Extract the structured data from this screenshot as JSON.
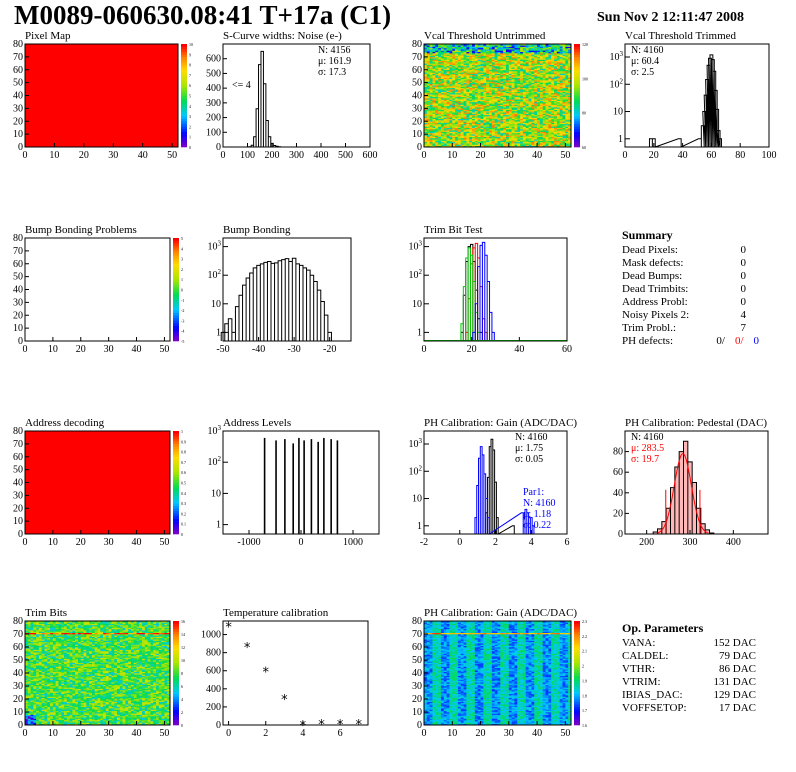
{
  "header": {
    "title": "M0089-060630.08:41 T+17a (C1)",
    "date": "Sun Nov  2 12:11:47 2008"
  },
  "colors": {
    "red": "#ff0000",
    "black": "#000000",
    "green": "#00cc00",
    "blue": "#0000ff",
    "pink_fill": "#ff9999"
  },
  "chart_data": [
    {
      "id": "pixel_map",
      "type": "heatmap",
      "title": "Pixel Map",
      "xlim": [
        0,
        52
      ],
      "ylim": [
        0,
        80
      ],
      "xticks": [
        "0",
        "10",
        "20",
        "30",
        "40",
        "50"
      ],
      "yticks": [
        "0",
        "10",
        "20",
        "30",
        "40",
        "50",
        "60",
        "70",
        "80"
      ],
      "zticks": [
        "0",
        "1",
        "2",
        "3",
        "4",
        "5",
        "6",
        "7",
        "8",
        "9",
        "10"
      ],
      "fill": "uniform-maximum"
    },
    {
      "id": "scurve_noise",
      "type": "histogram",
      "title": "S-Curve widths: Noise (e-)",
      "xlim": [
        0,
        600
      ],
      "ylim": [
        0,
        700
      ],
      "xticks": [
        "0",
        "100",
        "200",
        "300",
        "400",
        "500",
        "600"
      ],
      "yticks": [
        "0",
        "100",
        "200",
        "300",
        "400",
        "500",
        "600"
      ],
      "annotation": "<= 4",
      "stats": [
        "N: 4156",
        "μ: 161.9",
        "σ: 17.3"
      ],
      "x": [
        110,
        120,
        130,
        140,
        150,
        160,
        170,
        180,
        190,
        200,
        210,
        220,
        230,
        240
      ],
      "y": [
        2,
        12,
        70,
        260,
        560,
        650,
        430,
        180,
        70,
        25,
        10,
        5,
        2,
        0
      ]
    },
    {
      "id": "vcal_untrimmed",
      "type": "heatmap",
      "title": "Vcal Threshold Untrimmed",
      "xlim": [
        0,
        52
      ],
      "ylim": [
        0,
        80
      ],
      "xticks": [
        "0",
        "10",
        "20",
        "30",
        "40",
        "50"
      ],
      "yticks": [
        "0",
        "10",
        "20",
        "30",
        "40",
        "50",
        "60",
        "70",
        "80"
      ],
      "zticks": [
        "60",
        "80",
        "100",
        "120"
      ]
    },
    {
      "id": "vcal_trimmed",
      "type": "histogram",
      "title": "Vcal Threshold Trimmed",
      "yscale": "log",
      "xlim": [
        0,
        100
      ],
      "ylim": [
        0.5,
        3000
      ],
      "xticks": [
        "0",
        "20",
        "40",
        "60",
        "80",
        "100"
      ],
      "stats": [
        "N: 4160",
        "μ: 60.4",
        "σ:  2.5"
      ],
      "x": [
        18,
        20,
        38,
        52,
        54,
        55,
        56,
        57,
        58,
        59,
        60,
        61,
        62,
        63,
        64,
        65,
        66
      ],
      "y": [
        1,
        1,
        1,
        1,
        3,
        10,
        40,
        150,
        500,
        900,
        1200,
        800,
        300,
        60,
        12,
        2,
        1
      ]
    },
    {
      "id": "bump_problems",
      "type": "heatmap",
      "title": "Bump Bonding Problems",
      "xlim": [
        0,
        52
      ],
      "ylim": [
        0,
        80
      ],
      "xticks": [
        "0",
        "10",
        "20",
        "30",
        "40",
        "50"
      ],
      "yticks": [
        "0",
        "10",
        "20",
        "30",
        "40",
        "50",
        "60",
        "70",
        "80"
      ],
      "zticks": [
        "-5",
        "-4",
        "-3",
        "-2",
        "-1",
        "0",
        "1",
        "2",
        "3",
        "4",
        "5"
      ],
      "fill": "empty"
    },
    {
      "id": "bump_bonding",
      "type": "histogram",
      "title": "Bump Bonding",
      "yscale": "log",
      "xlim": [
        -50,
        -14
      ],
      "ylim": [
        0.5,
        2000
      ],
      "xticks": [
        "-50",
        "-40",
        "-30",
        "-20"
      ],
      "x": [
        -50,
        -49,
        -48,
        -47,
        -46,
        -45,
        -44,
        -43,
        -42,
        -41,
        -40,
        -39,
        -38,
        -37,
        -36,
        -35,
        -34,
        -33,
        -32,
        -31,
        -30,
        -29,
        -28,
        -27,
        -26,
        -25,
        -24,
        -23,
        -22,
        -21,
        -20,
        -19
      ],
      "y": [
        1,
        2,
        3,
        1,
        8,
        20,
        45,
        80,
        120,
        180,
        220,
        250,
        280,
        300,
        260,
        270,
        320,
        350,
        380,
        300,
        390,
        250,
        220,
        180,
        150,
        100,
        60,
        30,
        12,
        4,
        1,
        0
      ]
    },
    {
      "id": "trim_bit_test",
      "type": "histogram",
      "title": "Trim Bit Test",
      "yscale": "log",
      "xlim": [
        0,
        60
      ],
      "ylim": [
        0.5,
        2000
      ],
      "xticks": [
        "0",
        "20",
        "40",
        "60"
      ],
      "series": [
        {
          "color": "black",
          "x": [
            16,
            17,
            18,
            19,
            20,
            21,
            22,
            23,
            24
          ],
          "y": [
            1,
            20,
            300,
            1000,
            1200,
            300,
            30,
            3,
            1
          ]
        },
        {
          "color": "red",
          "x": [
            18,
            19,
            20,
            21,
            22,
            23,
            24,
            25,
            26
          ],
          "y": [
            1,
            15,
            250,
            900,
            1300,
            400,
            40,
            3,
            1
          ]
        },
        {
          "color": "green",
          "x": [
            16,
            17,
            18,
            19,
            20,
            21,
            22,
            23
          ],
          "y": [
            2,
            40,
            400,
            900,
            500,
            60,
            5,
            1
          ]
        },
        {
          "color": "blue",
          "x": [
            21,
            22,
            23,
            24,
            25,
            26,
            27,
            28,
            29
          ],
          "y": [
            1,
            10,
            200,
            1100,
            1400,
            500,
            60,
            5,
            1
          ]
        }
      ]
    },
    {
      "id": "address_decoding",
      "type": "heatmap",
      "title": "Address decoding",
      "xlim": [
        0,
        52
      ],
      "ylim": [
        0,
        80
      ],
      "xticks": [
        "0",
        "10",
        "20",
        "30",
        "40",
        "50"
      ],
      "yticks": [
        "0",
        "10",
        "20",
        "30",
        "40",
        "50",
        "60",
        "70",
        "80"
      ],
      "zticks": [
        "0",
        "0.1",
        "0.2",
        "0.3",
        "0.4",
        "0.5",
        "0.6",
        "0.7",
        "0.8",
        "0.9",
        "1"
      ],
      "fill": "uniform-maximum"
    },
    {
      "id": "address_levels",
      "type": "histogram",
      "title": "Address Levels",
      "yscale": "log",
      "xlim": [
        -1500,
        1500
      ],
      "ylim": [
        0.5,
        1000
      ],
      "xticks": [
        "-1000",
        "0",
        "1000"
      ],
      "x": [
        -700,
        -480,
        -310,
        -150,
        -40,
        60,
        200,
        330,
        440,
        580,
        700
      ],
      "y": [
        600,
        500,
        550,
        400,
        600,
        500,
        550,
        450,
        600,
        550,
        500
      ]
    },
    {
      "id": "ph_gain",
      "type": "histogram",
      "title": "PH Calibration: Gain (ADC/DAC)",
      "yscale": "log",
      "xlim": [
        -2,
        6
      ],
      "ylim": [
        0.5,
        3000
      ],
      "xticks": [
        "-2",
        "0",
        "2",
        "4",
        "6"
      ],
      "stats": [
        "N: 4160",
        "μ: 1.75",
        "σ: 0.05"
      ],
      "stats2": [
        "Par1:",
        "N: 4160",
        "μ: 1.18",
        "σ: 0.22"
      ],
      "series": [
        {
          "color": "black",
          "x": [
            1.5,
            1.6,
            1.7,
            1.8,
            1.9,
            2.0,
            2.1,
            3.0
          ],
          "y": [
            3,
            60,
            800,
            1500,
            600,
            40,
            2,
            1
          ]
        },
        {
          "color": "blue",
          "x": [
            0.9,
            1.0,
            1.1,
            1.2,
            1.3,
            1.4,
            1.5,
            1.6,
            3.5,
            3.6,
            3.7,
            3.8,
            3.9,
            4.0,
            4.1
          ],
          "y": [
            2,
            30,
            300,
            800,
            400,
            80,
            10,
            2,
            3,
            2,
            4,
            3,
            2,
            2,
            1
          ]
        }
      ]
    },
    {
      "id": "ph_pedestal",
      "type": "histogram",
      "title": "PH Calibration: Pedestal (DAC)",
      "xlim": [
        150,
        480
      ],
      "ylim": [
        0,
        100
      ],
      "xticks": [
        "200",
        "300",
        "400"
      ],
      "yticks": [
        "0",
        "20",
        "40",
        "60",
        "80"
      ],
      "stats": [
        "N: 4160",
        "μ: 283.5",
        "σ: 19.7"
      ],
      "x": [
        220,
        230,
        240,
        250,
        260,
        270,
        280,
        290,
        300,
        310,
        320,
        330,
        340,
        350
      ],
      "y": [
        2,
        5,
        12,
        25,
        45,
        65,
        80,
        90,
        70,
        50,
        25,
        10,
        4,
        1
      ],
      "fit": {
        "mu": 283.5,
        "sigma": 19.7,
        "amp": 78,
        "color": "red"
      }
    },
    {
      "id": "trim_bits",
      "type": "heatmap",
      "title": "Trim Bits",
      "xlim": [
        0,
        52
      ],
      "ylim": [
        0,
        80
      ],
      "xticks": [
        "0",
        "10",
        "20",
        "30",
        "40",
        "50"
      ],
      "yticks": [
        "0",
        "10",
        "20",
        "30",
        "40",
        "50",
        "60",
        "70",
        "80"
      ],
      "zticks": [
        "0",
        "2",
        "4",
        "6",
        "8",
        "10",
        "12",
        "14",
        "16"
      ]
    },
    {
      "id": "temperature",
      "type": "scatter",
      "title": "Temperature calibration",
      "xlim": [
        -0.3,
        7.5
      ],
      "ylim": [
        0,
        1150
      ],
      "xticks": [
        "0",
        "2",
        "4",
        "6"
      ],
      "yticks": [
        "0",
        "200",
        "400",
        "600",
        "800",
        "1000"
      ],
      "x": [
        0,
        1,
        2,
        3,
        4,
        5,
        6,
        7
      ],
      "y": [
        1090,
        860,
        590,
        290,
        0,
        10,
        10,
        10
      ]
    },
    {
      "id": "ph_gain_map",
      "type": "heatmap",
      "title": "PH Calibration: Gain (ADC/DAC)",
      "xlim": [
        0,
        52
      ],
      "ylim": [
        0,
        80
      ],
      "xticks": [
        "0",
        "10",
        "20",
        "30",
        "40",
        "50"
      ],
      "yticks": [
        "0",
        "10",
        "20",
        "30",
        "40",
        "50",
        "60",
        "70",
        "80"
      ],
      "zticks": [
        "1.6",
        "1.7",
        "1.8",
        "1.9",
        "2",
        "2.1",
        "2.2",
        "2.3"
      ]
    }
  ],
  "summary": {
    "title": "Summary",
    "rows": [
      {
        "label": "Dead Pixels:",
        "value": "0"
      },
      {
        "label": "Mask defects:",
        "value": "0"
      },
      {
        "label": "Dead Bumps:",
        "value": "0"
      },
      {
        "label": "Dead Trimbits:",
        "value": "0"
      },
      {
        "label": "Address Probl:",
        "value": "0"
      },
      {
        "label": "Noisy Pixels 2:",
        "value": "4"
      },
      {
        "label": "Trim Probl.:",
        "value": "7"
      }
    ],
    "ph_label": "PH defects:",
    "ph_values": [
      {
        "text": "0/",
        "color": "#000000"
      },
      {
        "text": "0/",
        "color": "#ff0000"
      },
      {
        "text": "0",
        "color": "#0000ff"
      }
    ]
  },
  "op_params": {
    "title": "Op. Parameters",
    "rows": [
      {
        "label": "VANA:",
        "value": "152 DAC"
      },
      {
        "label": "CALDEL:",
        "value": "79 DAC"
      },
      {
        "label": "VTHR:",
        "value": "86 DAC"
      },
      {
        "label": "VTRIM:",
        "value": "131 DAC"
      },
      {
        "label": "IBIAS_DAC:",
        "value": "129 DAC"
      },
      {
        "label": "VOFFSETOP:",
        "value": "17 DAC"
      }
    ]
  }
}
